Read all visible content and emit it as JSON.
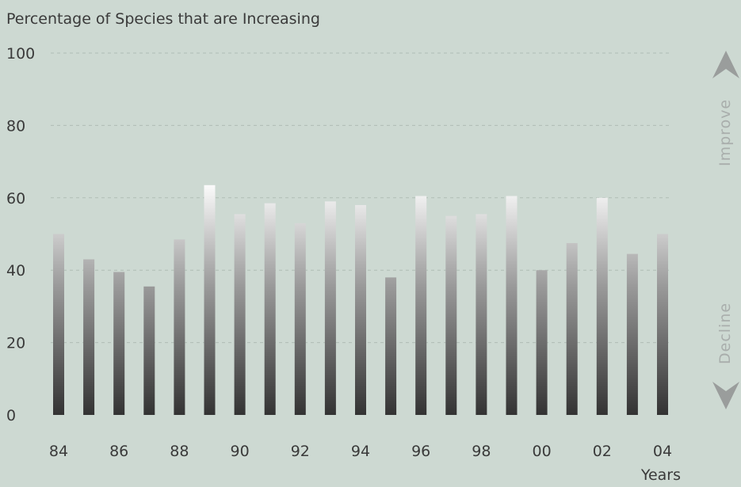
{
  "chart_data": {
    "type": "bar",
    "title": "Percentage of Species that are Increasing",
    "xlabel": "Years",
    "ylabel": "",
    "ylim": [
      0,
      100
    ],
    "y_ticks": [
      0,
      20,
      40,
      60,
      80,
      100
    ],
    "y_tick_labels": [
      "0",
      "20",
      "40",
      "60",
      "80",
      "100"
    ],
    "categories": [
      "84",
      "85",
      "86",
      "87",
      "88",
      "89",
      "90",
      "91",
      "92",
      "93",
      "94",
      "95",
      "96",
      "97",
      "98",
      "99",
      "00",
      "01",
      "02",
      "03",
      "04"
    ],
    "x_tick_labels": [
      "84",
      "86",
      "88",
      "90",
      "92",
      "94",
      "96",
      "98",
      "00",
      "02",
      "04"
    ],
    "values": [
      50,
      43,
      39.5,
      35.5,
      48.5,
      63.5,
      55.5,
      58.5,
      53,
      59,
      58,
      38,
      60.5,
      55,
      55.5,
      60.5,
      40,
      47.5,
      60,
      44.5,
      50
    ],
    "grid": true,
    "legend": "none"
  },
  "indicators": {
    "up_label": "Improve",
    "down_label": "Decline"
  }
}
